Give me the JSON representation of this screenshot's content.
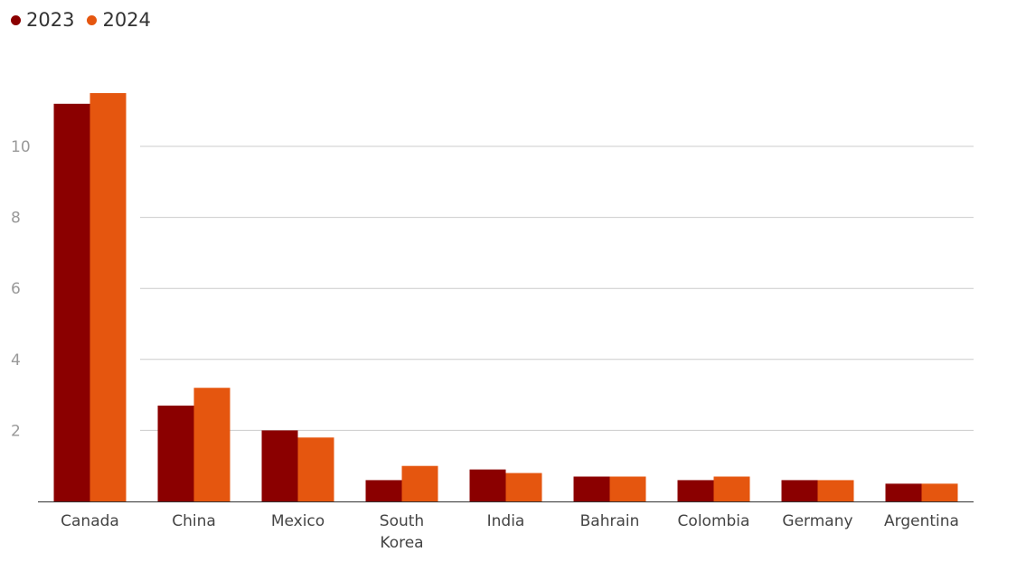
{
  "chart_data": {
    "type": "bar",
    "categories": [
      "Canada",
      "China",
      "Mexico",
      "South Korea",
      "India",
      "Bahrain",
      "Colombia",
      "Germany",
      "Argentina"
    ],
    "category_lines": [
      [
        "Canada"
      ],
      [
        "China"
      ],
      [
        "Mexico"
      ],
      [
        "South",
        "Korea"
      ],
      [
        "India"
      ],
      [
        "Bahrain"
      ],
      [
        "Colombia"
      ],
      [
        "Germany"
      ],
      [
        "Argentina"
      ]
    ],
    "series": [
      {
        "name": "2023",
        "color": "#8b0000",
        "values": [
          11.2,
          2.7,
          2.0,
          0.6,
          0.9,
          0.7,
          0.6,
          0.6,
          0.5
        ]
      },
      {
        "name": "2024",
        "color": "#e5560f",
        "values": [
          11.5,
          3.2,
          1.8,
          1.0,
          0.8,
          0.7,
          0.7,
          0.6,
          0.5
        ]
      }
    ],
    "yticks": [
      2,
      4,
      6,
      8,
      10
    ],
    "ylim": [
      0,
      11.5
    ],
    "grid": true,
    "legend_position": "top-left",
    "title": "",
    "xlabel": "",
    "ylabel": ""
  }
}
